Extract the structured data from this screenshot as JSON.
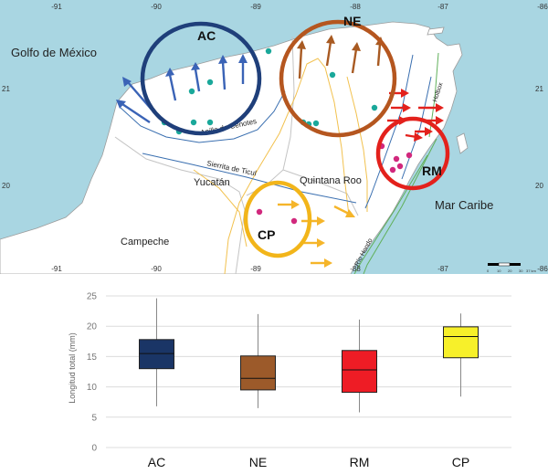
{
  "map": {
    "lon_ticks_top": [
      "-91",
      "-90",
      "-89",
      "-88",
      "-87",
      "-86"
    ],
    "lon_ticks_bottom": [
      "-91",
      "-90",
      "-89",
      "-88",
      "-87",
      "-86"
    ],
    "lat_ticks_left": [
      "21",
      "20"
    ],
    "lat_ticks_right": [
      "21",
      "20"
    ],
    "places": {
      "golfo": "Golfo de México",
      "mar_caribe": "Mar Caribe",
      "yucatan": "Yucatán",
      "campeche": "Campeche",
      "quintana_roo": "Quintana Roo",
      "anillo": "Anillo de Cenotes",
      "sierrita": "Sierrita de Ticul",
      "holbox": "Holbox",
      "rio_hondo": "Río Hondo"
    },
    "regions": [
      {
        "id": "AC",
        "label": "AC",
        "color": "#1f3f7a"
      },
      {
        "id": "NE",
        "label": "NE",
        "color": "#b5561f"
      },
      {
        "id": "RM",
        "label": "RM",
        "color": "#e3211c"
      },
      {
        "id": "CP",
        "label": "CP",
        "color": "#f2b51a"
      }
    ],
    "scale_bar_labels": [
      "0",
      "10",
      "20",
      "30",
      "37 km"
    ],
    "colors": {
      "sea": "#a9d6e2",
      "land": "#ffffff",
      "border": "#c4c4c4",
      "teal_dot": "#1aa89a",
      "magenta_dot": "#d1287d"
    }
  },
  "chart_data": {
    "type": "box",
    "ylabel": "Longitud total (mm)",
    "ylim": [
      0,
      25
    ],
    "yticks": [
      "0",
      "5",
      "10",
      "15",
      "20",
      "25"
    ],
    "categories": [
      "AC",
      "NE",
      "RM",
      "CP"
    ],
    "boxes": [
      {
        "category": "AC",
        "min": 6.8,
        "q1": 13.0,
        "median": 15.5,
        "q3": 17.8,
        "max": 24.6,
        "color": "#1a3566"
      },
      {
        "category": "NE",
        "min": 6.5,
        "q1": 9.5,
        "median": 11.4,
        "q3": 15.1,
        "max": 22.0,
        "color": "#9c5a2a"
      },
      {
        "category": "RM",
        "min": 5.8,
        "q1": 9.1,
        "median": 12.8,
        "q3": 16.0,
        "max": 21.1,
        "color": "#ee1c25"
      },
      {
        "category": "CP",
        "min": 8.4,
        "q1": 14.8,
        "median": 18.3,
        "q3": 19.9,
        "max": 22.1,
        "color": "#f7f02a"
      }
    ]
  }
}
